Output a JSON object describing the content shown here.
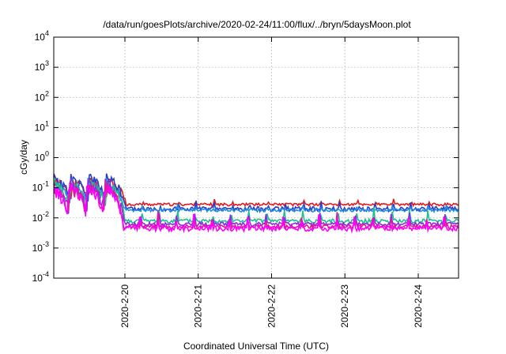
{
  "chart_data": {
    "type": "line",
    "title": "/data/run/goesPlots/archive/2020-02-24/11:00/flux/../bryn/5daysMoon.plot",
    "xlabel": "Coordinated Universal Time (UTC)",
    "ylabel": "cGy/day",
    "yscale": "log",
    "ylim": [
      0.0001,
      10000
    ],
    "xlim": [
      -0.97,
      4.55
    ],
    "grid": true,
    "y_ticks": [
      {
        "value": 0.0001,
        "base": "10",
        "exp": "-4"
      },
      {
        "value": 0.001,
        "base": "10",
        "exp": "-3"
      },
      {
        "value": 0.01,
        "base": "10",
        "exp": "-2"
      },
      {
        "value": 0.1,
        "base": "10",
        "exp": "-1"
      },
      {
        "value": 1,
        "base": "10",
        "exp": "0"
      },
      {
        "value": 10,
        "base": "10",
        "exp": "1"
      },
      {
        "value": 100,
        "base": "10",
        "exp": "2"
      },
      {
        "value": 1000,
        "base": "10",
        "exp": "3"
      },
      {
        "value": 10000,
        "base": "10",
        "exp": "4"
      }
    ],
    "x_ticks": [
      {
        "value": 0,
        "label": "2020-2-20"
      },
      {
        "value": 1,
        "label": "2020-2-21"
      },
      {
        "value": 2,
        "label": "2020-2-22"
      },
      {
        "value": 3,
        "label": "2020-2-23"
      },
      {
        "value": 4,
        "label": "2020-2-24"
      }
    ],
    "series": [
      {
        "color": "#e41a1c",
        "base": 0.028,
        "amp": 0.012,
        "noise": 0.1,
        "seed": 11
      },
      {
        "color": "#2a3cc8",
        "base": 0.02,
        "amp": 0.015,
        "noise": 0.18,
        "seed": 23
      },
      {
        "color": "#1f8fe0",
        "base": 0.018,
        "amp": 0.01,
        "noise": 0.12,
        "seed": 37
      },
      {
        "color": "#1fbf8f",
        "base": 0.008,
        "amp": 0.012,
        "noise": 0.15,
        "seed": 41
      },
      {
        "color": "#8a2be2",
        "base": 0.0062,
        "amp": 0.01,
        "noise": 0.15,
        "seed": 53
      },
      {
        "color": "#e4189b",
        "base": 0.0052,
        "amp": 0.009,
        "noise": 0.15,
        "seed": 67
      },
      {
        "color": "#ff00ff",
        "base": 0.0045,
        "amp": 0.008,
        "noise": 0.2,
        "seed": 79
      }
    ]
  }
}
